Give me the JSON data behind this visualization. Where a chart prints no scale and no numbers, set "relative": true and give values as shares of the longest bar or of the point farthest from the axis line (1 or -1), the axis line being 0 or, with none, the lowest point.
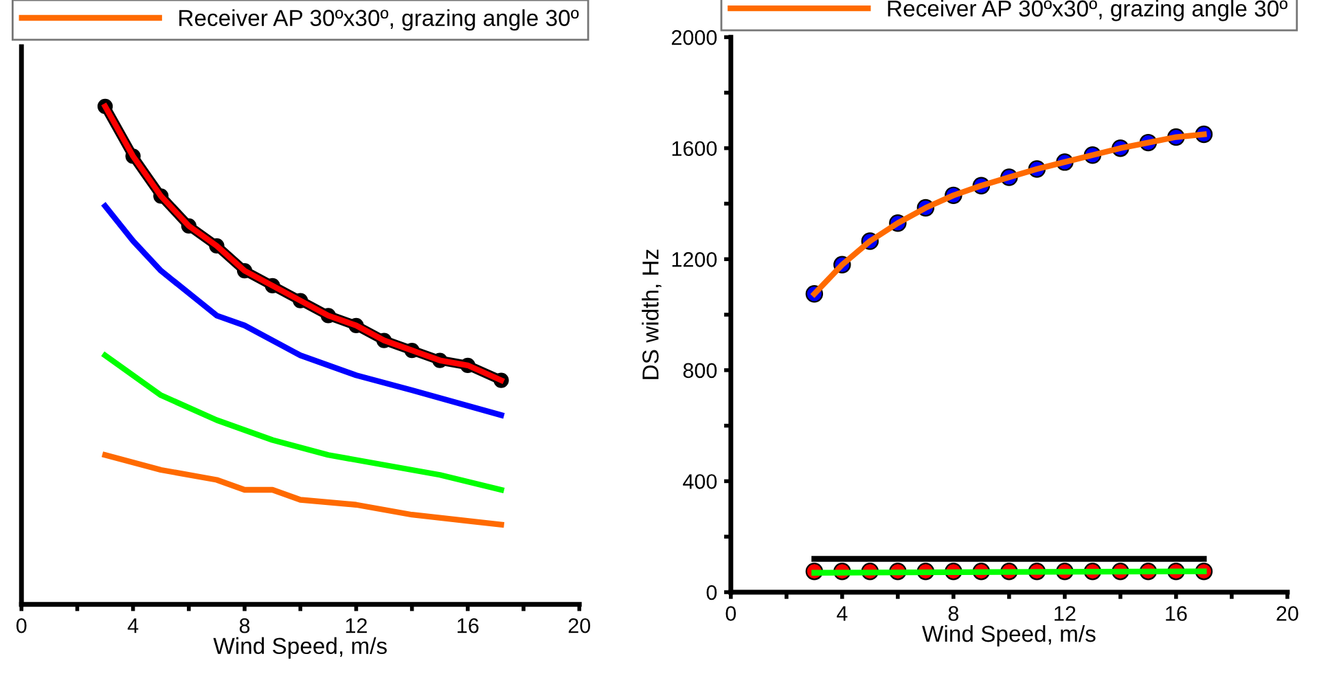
{
  "chart_data": [
    {
      "type": "line",
      "relative": true,
      "xlabel": "Wind Speed, m/s",
      "xlim": [
        0,
        20
      ],
      "xticks": [
        0,
        {
          "value": 2,
          "label": null
        },
        4,
        {
          "value": 6,
          "label": null
        },
        8,
        {
          "value": 10,
          "label": null
        },
        12,
        {
          "value": 14,
          "label": null
        },
        16,
        {
          "value": 18,
          "label": null
        },
        20
      ],
      "tick_labels": "x",
      "legend": "top",
      "grid": false,
      "series": [
        {
          "color": "#000000",
          "marker": "circle",
          "x": [
            3,
            4,
            5,
            6,
            7,
            8,
            9,
            10,
            11,
            12,
            13,
            14,
            15,
            16,
            17.2
          ],
          "values": [
            1,
            0.9,
            0.82,
            0.76,
            0.72,
            0.67,
            0.64,
            0.61,
            0.58,
            0.56,
            0.53,
            0.51,
            0.49,
            0.48,
            0.45
          ]
        },
        {
          "color": "#ff0000",
          "x": [
            3,
            4,
            5,
            6,
            7,
            8,
            9,
            10,
            11,
            12,
            13,
            14,
            15,
            16,
            17.2
          ],
          "values": [
            1,
            0.9,
            0.82,
            0.76,
            0.72,
            0.67,
            0.64,
            0.61,
            0.58,
            0.56,
            0.53,
            0.51,
            0.49,
            0.48,
            0.45
          ]
        },
        {
          "color": "#0000ff",
          "x": [
            3,
            4,
            5,
            7,
            8,
            10,
            12,
            14,
            17.2
          ],
          "values": [
            0.8,
            0.73,
            0.67,
            0.58,
            0.56,
            0.5,
            0.46,
            0.43,
            0.38
          ]
        },
        {
          "color": "#00ff00",
          "x": [
            3,
            5,
            7,
            9,
            11,
            13,
            15,
            17.2
          ],
          "values": [
            0.5,
            0.42,
            0.37,
            0.33,
            0.3,
            0.28,
            0.26,
            0.23
          ]
        },
        {
          "name": "Receiver AP 30ºx30º, grazing angle 30º",
          "color": "#ff6a00",
          "x": [
            3,
            5,
            7,
            8,
            9,
            10,
            12,
            13,
            14,
            17.2
          ],
          "values": [
            0.3,
            0.27,
            0.25,
            0.23,
            0.23,
            0.21,
            0.2,
            0.19,
            0.18,
            0.16
          ]
        }
      ]
    },
    {
      "type": "line",
      "xlabel": "Wind Speed, m/s",
      "ylabel": "DS width, Hz",
      "xlim": [
        0,
        20
      ],
      "ylim": [
        0,
        2000
      ],
      "xticks": [
        0,
        {
          "value": 2,
          "label": null
        },
        4,
        {
          "value": 6,
          "label": null
        },
        8,
        {
          "value": 10,
          "label": null
        },
        12,
        {
          "value": 14,
          "label": null
        },
        16,
        {
          "value": 18,
          "label": null
        },
        20
      ],
      "yticks": [
        0,
        {
          "value": 200,
          "label": null
        },
        400,
        {
          "value": 600,
          "label": null
        },
        800,
        {
          "value": 1000,
          "label": null
        },
        1200,
        {
          "value": 1400,
          "label": null
        },
        1600,
        {
          "value": 1800,
          "label": null
        },
        2000
      ],
      "legend": "top",
      "grid": false,
      "series": [
        {
          "color": "#000000",
          "x": [
            3,
            17
          ],
          "values": [
            120,
            120
          ]
        },
        {
          "type": "scatter",
          "marker": "circle",
          "color": "#ff0000",
          "x": [
            3,
            4,
            5,
            6,
            7,
            8,
            9,
            10,
            11,
            12,
            13,
            14,
            15,
            16,
            17
          ],
          "values": [
            75,
            75,
            75,
            75,
            75,
            75,
            75,
            75,
            75,
            75,
            75,
            75,
            75,
            75,
            75
          ]
        },
        {
          "color": "#00ff00",
          "x": [
            3,
            8,
            17
          ],
          "values": [
            70,
            72,
            75
          ]
        },
        {
          "type": "scatter",
          "marker": "circle",
          "color": "#0000ff",
          "x": [
            3,
            4,
            5,
            6,
            7,
            8,
            9,
            10,
            11,
            12,
            13,
            14,
            15,
            16,
            17
          ],
          "values": [
            1075,
            1180,
            1265,
            1330,
            1385,
            1430,
            1465,
            1495,
            1525,
            1550,
            1575,
            1600,
            1620,
            1640,
            1650
          ]
        },
        {
          "name": "Receiver AP 30ºx30º, grazing angle 30º",
          "color": "#ff6a00",
          "x": [
            3,
            4,
            5,
            6,
            7,
            8,
            9,
            10,
            11,
            12,
            13,
            14,
            15,
            16,
            17
          ],
          "values": [
            1075,
            1180,
            1265,
            1330,
            1385,
            1430,
            1465,
            1495,
            1525,
            1550,
            1575,
            1600,
            1620,
            1640,
            1650
          ]
        }
      ]
    }
  ]
}
